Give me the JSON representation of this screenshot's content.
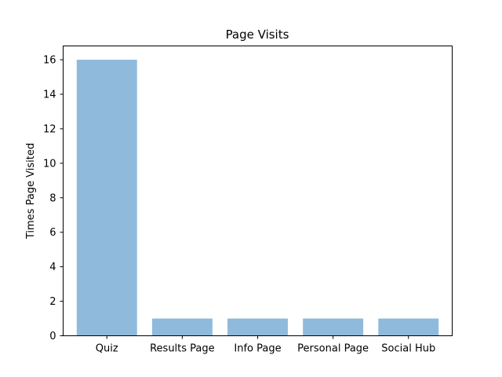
{
  "chart_data": {
    "type": "bar",
    "title": "Page Visits",
    "xlabel": "",
    "ylabel": "Times Page Visited",
    "categories": [
      "Quiz",
      "Results Page",
      "Info Page",
      "Personal Page",
      "Social Hub"
    ],
    "values": [
      16,
      1,
      1,
      1,
      1
    ],
    "ylim": [
      0,
      16.8
    ],
    "yticks": [
      0,
      2,
      4,
      6,
      8,
      10,
      12,
      14,
      16
    ],
    "grid": false,
    "legend": "none",
    "bar_color": "#8fbadb"
  }
}
